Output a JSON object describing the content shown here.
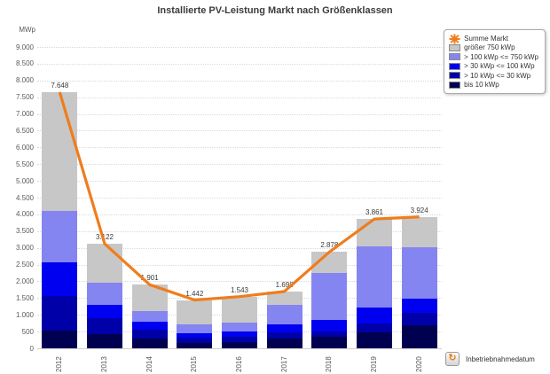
{
  "chart_data": {
    "type": "bar",
    "stacked": true,
    "title": "Installierte PV-Leistung Markt nach Größenklassen",
    "ylabel": "MWp",
    "xlabel": "",
    "categories": [
      "2012",
      "2013",
      "2014",
      "2015",
      "2016",
      "2017",
      "2018",
      "2019",
      "2020"
    ],
    "series": [
      {
        "name": "bis 10 kWp",
        "color": "#000050",
        "values": [
          530,
          430,
          300,
          170,
          195,
          290,
          335,
          480,
          695
        ]
      },
      {
        "name": "> 10 kWp <= 30 kWp",
        "color": "#0000a8",
        "values": [
          1040,
          480,
          250,
          140,
          140,
          175,
          170,
          270,
          360
        ]
      },
      {
        "name": "> 30 kWp <= 100 kWp",
        "color": "#0000f0",
        "values": [
          990,
          400,
          240,
          150,
          170,
          260,
          335,
          460,
          420
        ]
      },
      {
        "name": "> 100 kWp <= 750 kWp",
        "color": "#8585f2",
        "values": [
          1550,
          640,
          320,
          260,
          250,
          575,
          1420,
          1840,
          1530
        ]
      },
      {
        "name": "größer 750 kWp",
        "color": "#c7c7c7",
        "values": [
          3538,
          1172,
          791,
          722,
          788,
          398,
          618,
          811,
          919
        ]
      }
    ],
    "line_series": {
      "name": "Summe Markt",
      "color": "#ef7d1d",
      "values": [
        7648,
        3122,
        1901,
        1442,
        1543,
        1698,
        2878,
        3861,
        3924
      ]
    },
    "total_labels": [
      "7.648",
      "3.122",
      "1.901",
      "1.442",
      "1.543",
      "1.698",
      "2.878",
      "3.861",
      "3.924"
    ],
    "ylim": [
      0,
      9000
    ],
    "ytick_step": 500,
    "ytick_labels": [
      "0",
      "500",
      "1.000",
      "1.500",
      "2.000",
      "2.500",
      "3.000",
      "3.500",
      "4.000",
      "4.500",
      "5.000",
      "5.500",
      "6.000",
      "6.500",
      "7.000",
      "7.500",
      "8.000",
      "8.500",
      "9.000"
    ],
    "grid": "horizontal-dotted",
    "legend_position": "top-right"
  },
  "footer": {
    "label": "Inbetriebnahmedatum",
    "icon": "circular-arrow-icon"
  }
}
